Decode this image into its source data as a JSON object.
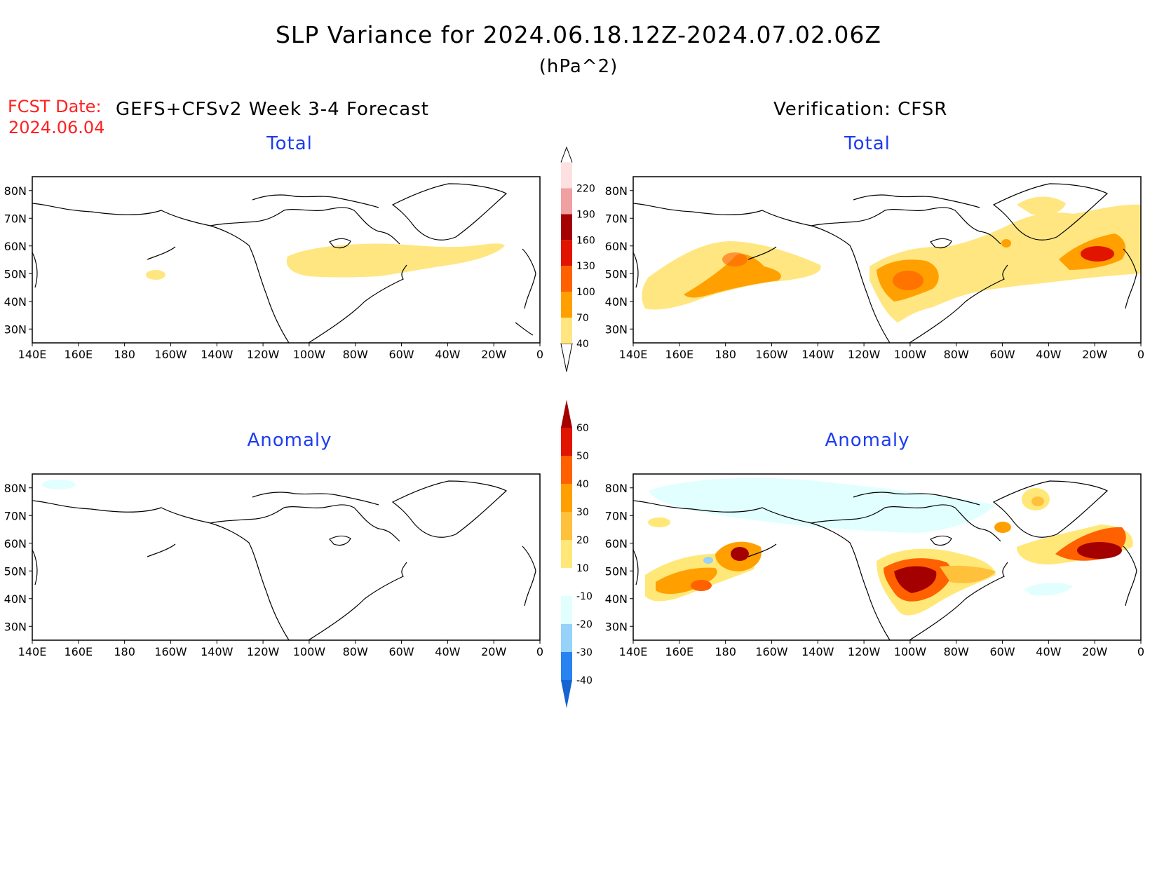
{
  "header": {
    "title": "SLP Variance for 2024.06.18.12Z-2024.07.02.06Z",
    "units": "(hPa^2)",
    "fcst_label": "FCST Date:",
    "fcst_date": "2024.06.04",
    "left_title": "GEFS+CFSv2 Week 3-4 Forecast",
    "right_title": "Verification: CFSR"
  },
  "panels": [
    {
      "id": "fcst-total",
      "title": "Total"
    },
    {
      "id": "verif-total",
      "title": "Total"
    },
    {
      "id": "fcst-anomaly",
      "title": "Anomaly"
    },
    {
      "id": "verif-anomaly",
      "title": "Anomaly"
    }
  ],
  "axes": {
    "lon_labels": [
      "140E",
      "160E",
      "180",
      "160W",
      "140W",
      "120W",
      "100W",
      "80W",
      "60W",
      "40W",
      "20W",
      "0"
    ],
    "lat_labels": [
      "80N",
      "70N",
      "60N",
      "50N",
      "40N",
      "30N"
    ]
  },
  "colorbars": {
    "total": {
      "levels": [
        "40",
        "70",
        "100",
        "130",
        "160",
        "190",
        "220"
      ],
      "colors": [
        "#ffe680",
        "#ffa000",
        "#ff6000",
        "#e11400",
        "#a50000",
        "#f0a0a0",
        "#fde0e0"
      ]
    },
    "anomaly": {
      "levels": [
        "-40",
        "-30",
        "-20",
        "-10",
        "10",
        "20",
        "30",
        "40",
        "50",
        "60"
      ],
      "colors": [
        "#1464d2",
        "#2882f0",
        "#96d2fa",
        "#e1ffff",
        "#ffffff",
        "#ffe878",
        "#ffc03c",
        "#ffa000",
        "#ff6000",
        "#e11400",
        "#a50000"
      ]
    }
  }
}
